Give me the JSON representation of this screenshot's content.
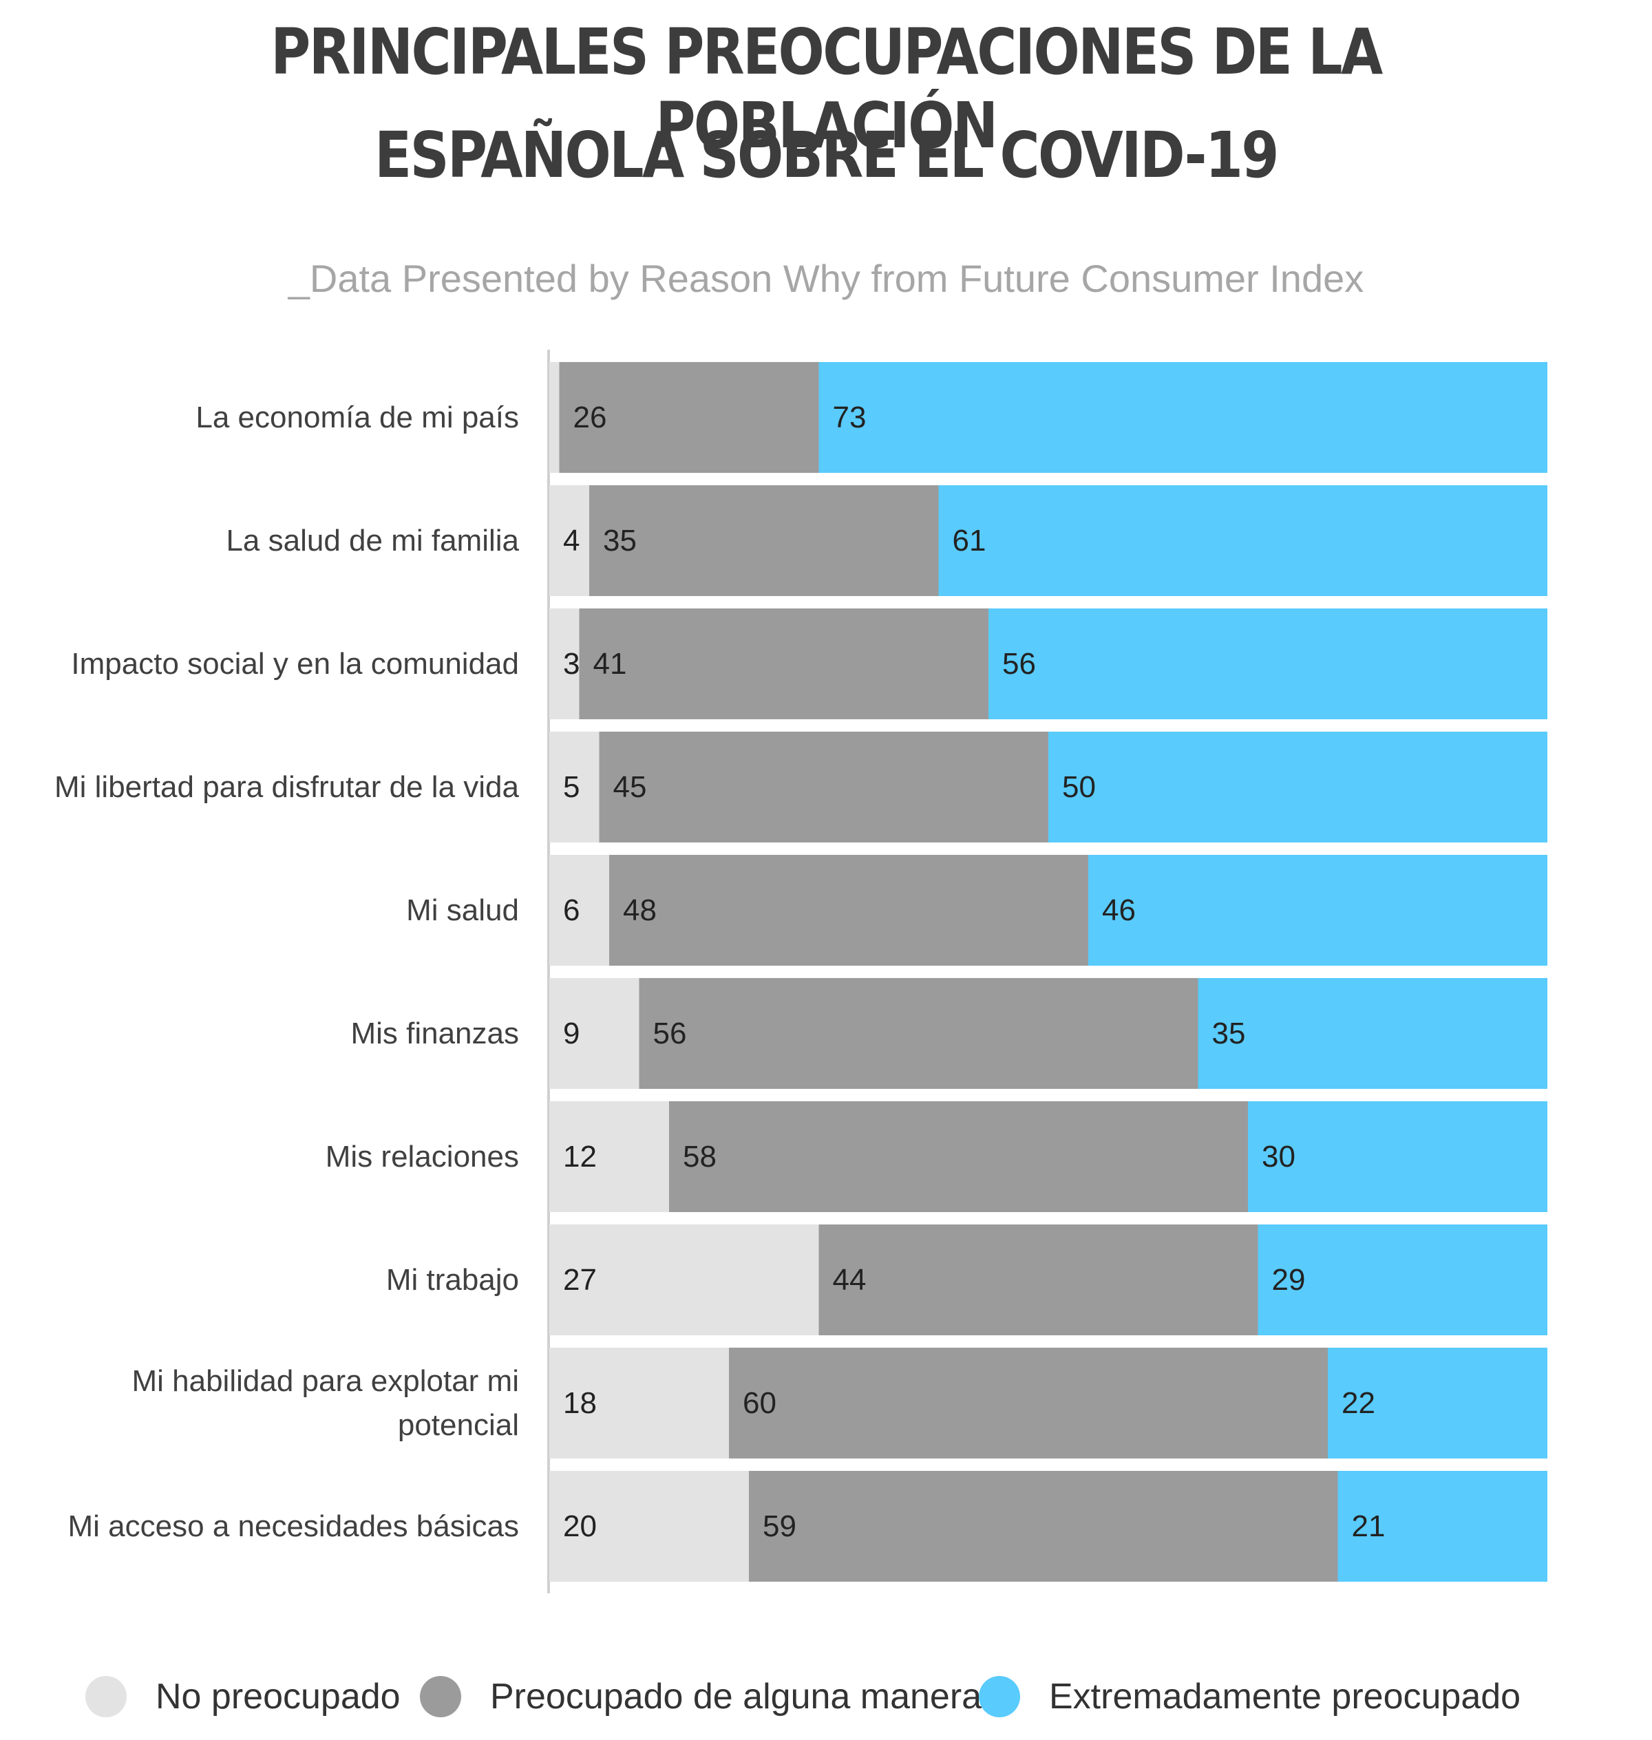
{
  "chart_data": {
    "type": "bar",
    "orientation": "horizontal",
    "stacked": true,
    "title_line1": "PRINCIPALES PREOCUPACIONES DE LA POBLACIÓN",
    "title_line2": "ESPAÑOLA SOBRE EL COVID-19",
    "subtitle": "_Data Presented by Reason Why from Future Consumer Index",
    "xlim": [
      0,
      100
    ],
    "grid": false,
    "legend_position": "bottom",
    "categories": [
      [
        "La economía de mi país"
      ],
      [
        "La salud de mi familia"
      ],
      [
        "Impacto social y en la comunidad"
      ],
      [
        "Mi libertad para disfrutar de la vida"
      ],
      [
        "Mi salud"
      ],
      [
        "Mis finanzas"
      ],
      [
        "Mis relaciones"
      ],
      [
        "Mi trabajo"
      ],
      [
        "Mi habilidad para explotar mi",
        "potencial"
      ],
      [
        "Mi acceso a necesidades básicas"
      ]
    ],
    "series": [
      {
        "name": "No preocupado",
        "color": "#e3e3e3",
        "values": [
          1,
          4,
          3,
          5,
          6,
          9,
          12,
          27,
          18,
          20
        ]
      },
      {
        "name": "Preocupado de alguna manera",
        "color": "#9b9b9b",
        "values": [
          26,
          35,
          41,
          45,
          48,
          56,
          58,
          44,
          60,
          59
        ]
      },
      {
        "name": "Extremadamente preocupado",
        "color": "#59cbfd",
        "values": [
          73,
          61,
          56,
          50,
          46,
          35,
          30,
          29,
          22,
          21
        ]
      }
    ]
  }
}
